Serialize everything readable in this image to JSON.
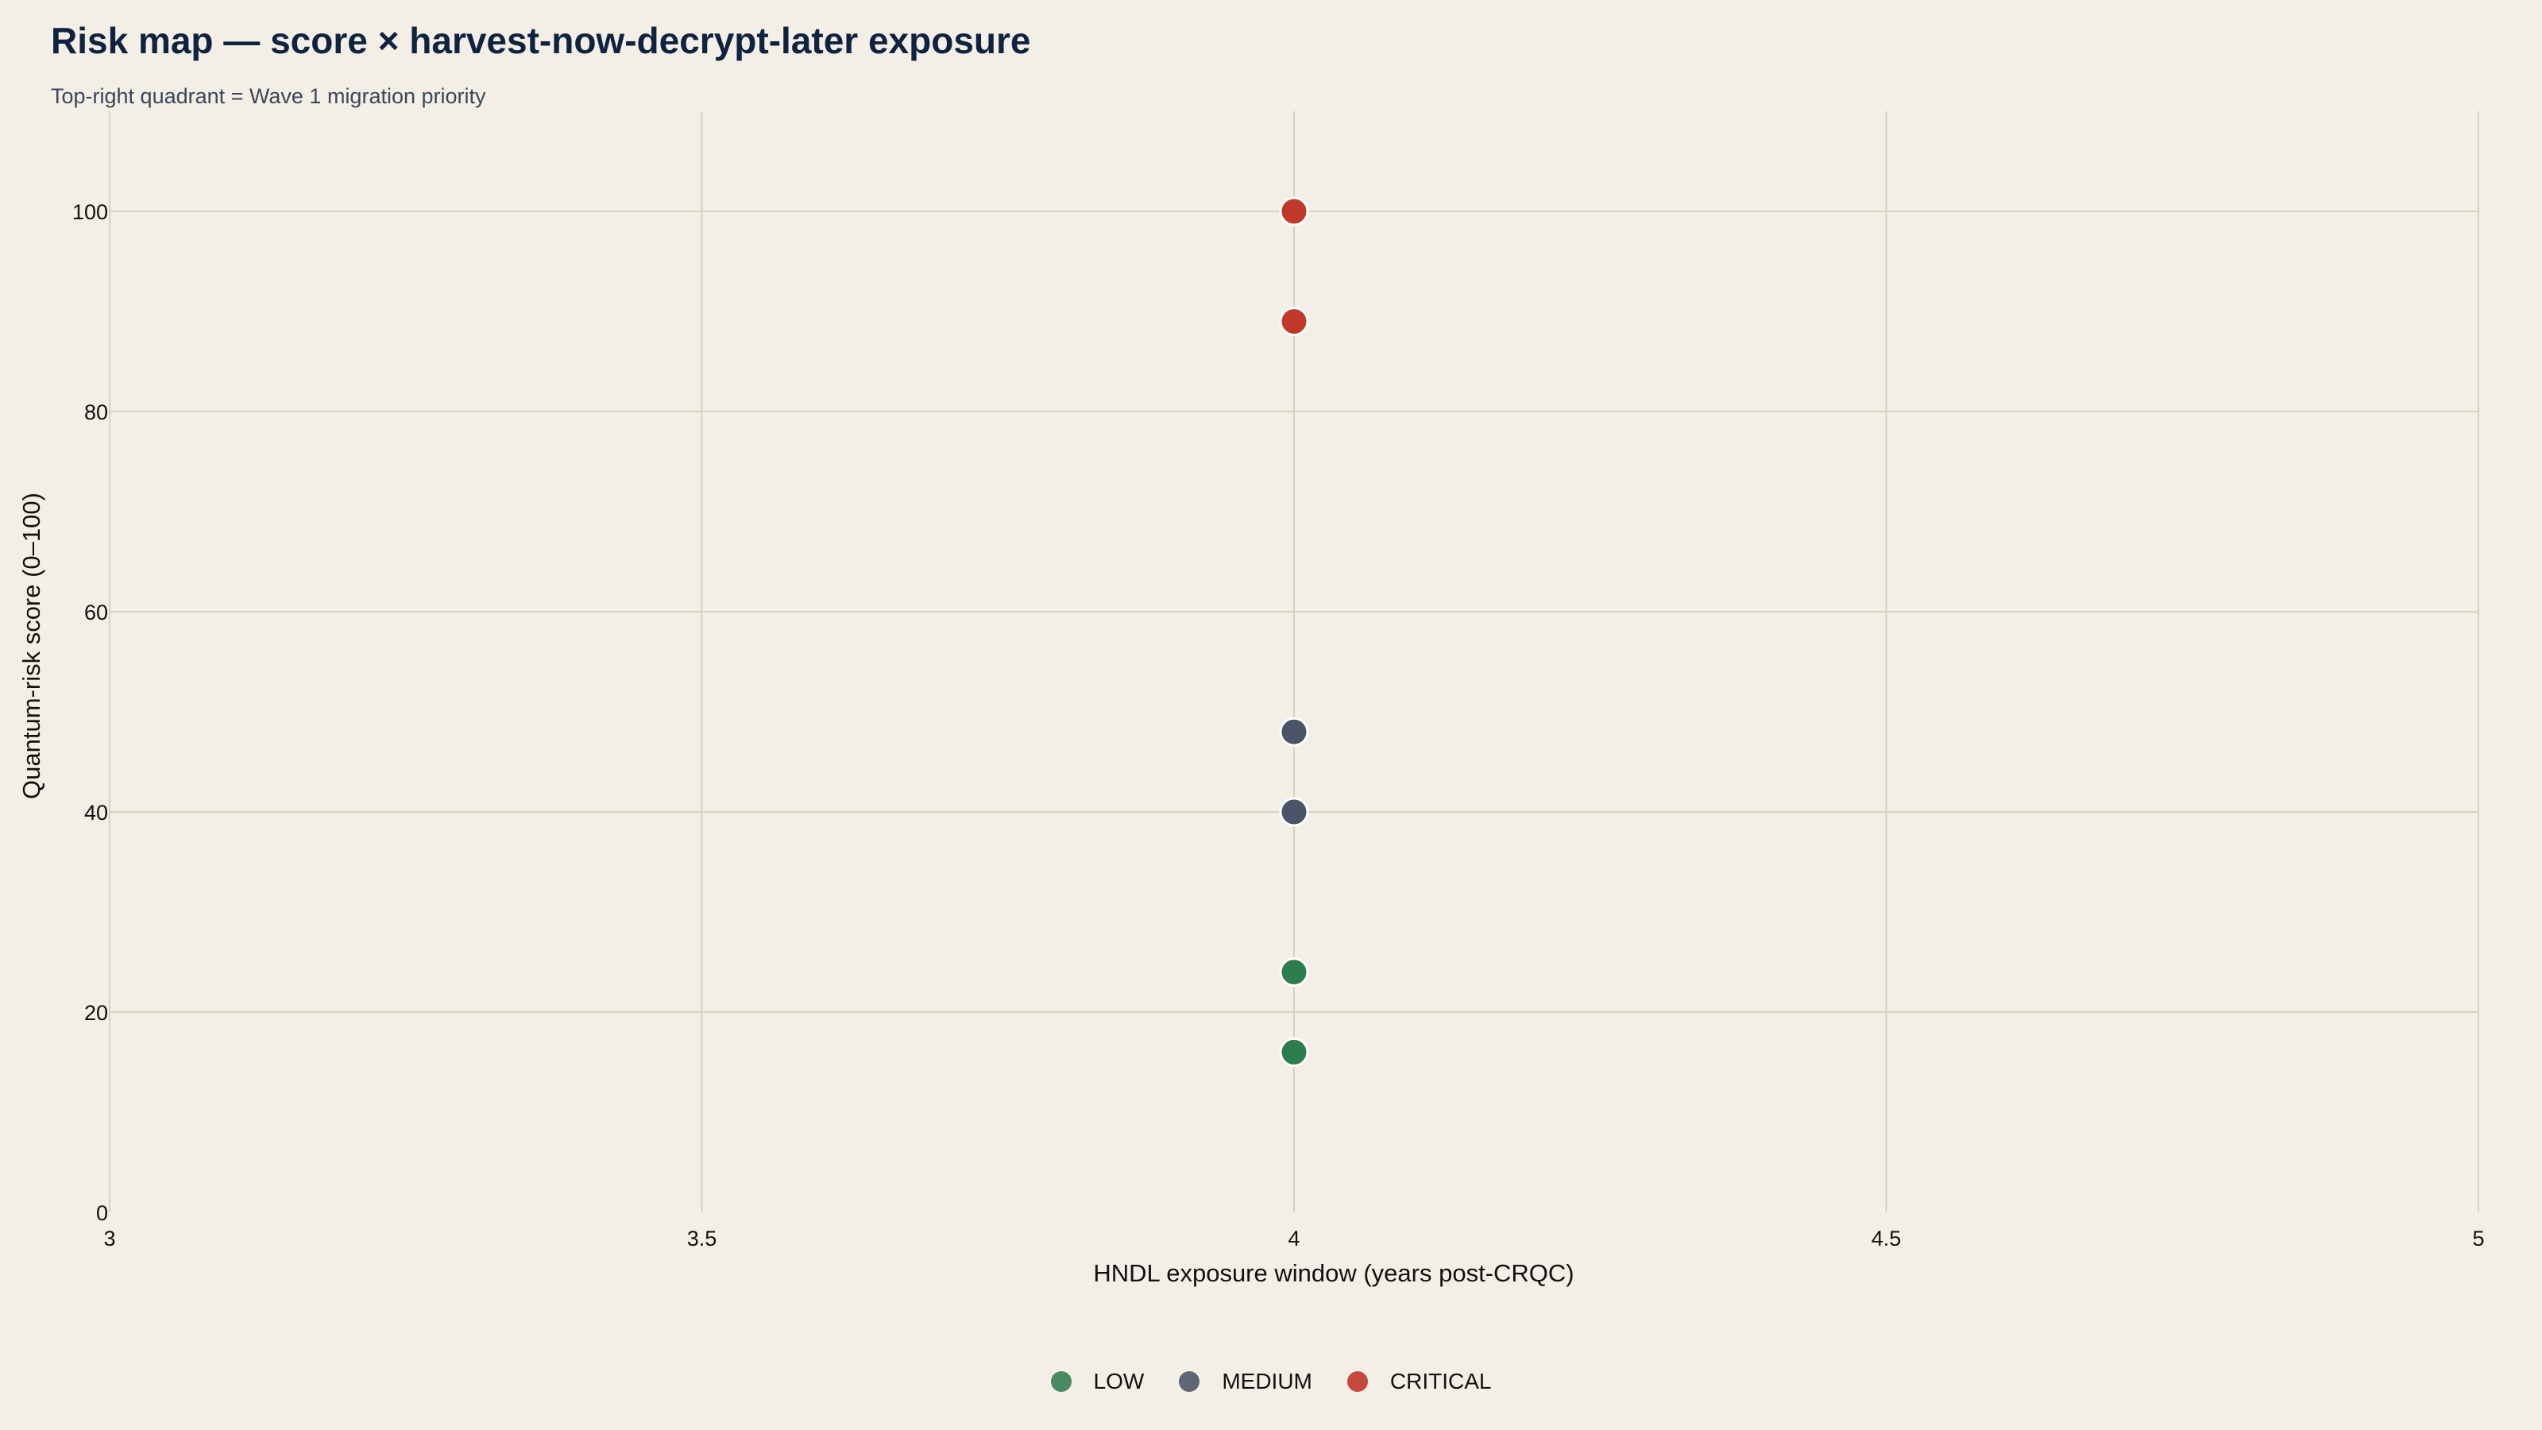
{
  "title": "Risk map — score × harvest-now-decrypt-later exposure",
  "subtitle": "Top-right quadrant = Wave 1 migration priority",
  "chart_data": {
    "type": "scatter",
    "xlabel": "HNDL exposure window (years post-CRQC)",
    "ylabel": "Quantum-risk score (0–100)",
    "xlim": [
      3,
      5
    ],
    "ylim": [
      0,
      110
    ],
    "x_ticks": [
      "3",
      "3.5",
      "4",
      "4.5",
      "5"
    ],
    "x_tick_values": [
      3,
      3.5,
      4,
      4.5,
      5
    ],
    "y_ticks": [
      "0",
      "20",
      "40",
      "60",
      "80",
      "100"
    ],
    "y_tick_values": [
      0,
      20,
      40,
      60,
      80,
      100
    ],
    "grid": true,
    "legend_position": "bottom-center",
    "series": [
      {
        "name": "LOW",
        "color": "#2e7d4f",
        "legend_color": "#4a8a63",
        "points": [
          {
            "x": 4,
            "y": 24
          },
          {
            "x": 4,
            "y": 16
          }
        ]
      },
      {
        "name": "MEDIUM",
        "color": "#4a5568",
        "legend_color": "#5f6675",
        "points": [
          {
            "x": 4,
            "y": 48
          },
          {
            "x": 4,
            "y": 40
          }
        ]
      },
      {
        "name": "CRITICAL",
        "color": "#c0392b",
        "legend_color": "#c6493d",
        "points": [
          {
            "x": 4,
            "y": 100
          },
          {
            "x": 4,
            "y": 89
          }
        ]
      }
    ]
  }
}
